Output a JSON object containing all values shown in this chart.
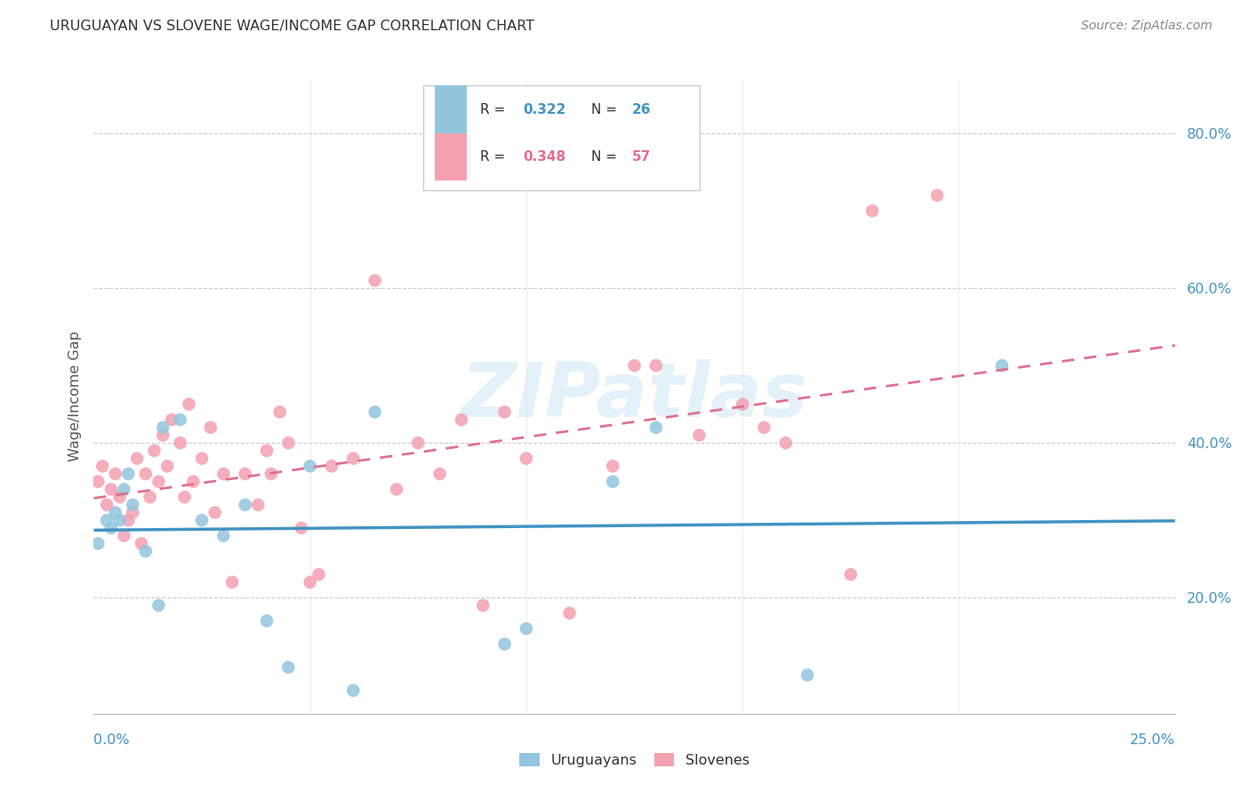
{
  "title": "URUGUAYAN VS SLOVENE WAGE/INCOME GAP CORRELATION CHART",
  "source": "Source: ZipAtlas.com",
  "ylabel": "Wage/Income Gap",
  "color_uruguayan": "#92c5de",
  "color_slovene": "#f4a0b0",
  "line_color_uruguayan": "#4393c3",
  "line_color_slovene": "#e07090",
  "watermark": "ZIPatlas",
  "xlim": [
    0.0,
    0.25
  ],
  "ylim": [
    0.05,
    0.87
  ],
  "R_uruguayan": "0.322",
  "N_uruguayan": "26",
  "R_slovene": "0.348",
  "N_slovene": "57",
  "label_uruguayan": "Uruguayans",
  "label_slovene": "Slovenes",
  "ytick_vals": [
    0.2,
    0.4,
    0.6,
    0.8
  ],
  "ytick_labels": [
    "20.0%",
    "40.0%",
    "60.0%",
    "80.0%"
  ],
  "uruguayan_x": [
    0.001,
    0.003,
    0.004,
    0.005,
    0.006,
    0.007,
    0.008,
    0.009,
    0.012,
    0.015,
    0.016,
    0.02,
    0.025,
    0.03,
    0.035,
    0.04,
    0.045,
    0.05,
    0.06,
    0.065,
    0.095,
    0.1,
    0.13,
    0.165,
    0.21,
    0.12
  ],
  "uruguayan_y": [
    0.27,
    0.3,
    0.29,
    0.31,
    0.3,
    0.34,
    0.36,
    0.32,
    0.26,
    0.19,
    0.42,
    0.43,
    0.3,
    0.28,
    0.32,
    0.17,
    0.11,
    0.37,
    0.08,
    0.44,
    0.14,
    0.16,
    0.42,
    0.1,
    0.5,
    0.35
  ],
  "slovene_x": [
    0.001,
    0.002,
    0.003,
    0.004,
    0.005,
    0.006,
    0.007,
    0.008,
    0.009,
    0.01,
    0.011,
    0.012,
    0.013,
    0.014,
    0.015,
    0.016,
    0.017,
    0.018,
    0.02,
    0.021,
    0.022,
    0.023,
    0.025,
    0.027,
    0.028,
    0.03,
    0.032,
    0.035,
    0.038,
    0.04,
    0.041,
    0.043,
    0.045,
    0.048,
    0.05,
    0.052,
    0.055,
    0.06,
    0.065,
    0.07,
    0.075,
    0.08,
    0.085,
    0.09,
    0.095,
    0.1,
    0.11,
    0.12,
    0.13,
    0.14,
    0.15,
    0.16,
    0.175,
    0.18,
    0.195,
    0.125,
    0.155
  ],
  "slovene_y": [
    0.35,
    0.37,
    0.32,
    0.34,
    0.36,
    0.33,
    0.28,
    0.3,
    0.31,
    0.38,
    0.27,
    0.36,
    0.33,
    0.39,
    0.35,
    0.41,
    0.37,
    0.43,
    0.4,
    0.33,
    0.45,
    0.35,
    0.38,
    0.42,
    0.31,
    0.36,
    0.22,
    0.36,
    0.32,
    0.39,
    0.36,
    0.44,
    0.4,
    0.29,
    0.22,
    0.23,
    0.37,
    0.38,
    0.61,
    0.34,
    0.4,
    0.36,
    0.43,
    0.19,
    0.44,
    0.38,
    0.18,
    0.37,
    0.5,
    0.41,
    0.45,
    0.4,
    0.23,
    0.7,
    0.72,
    0.5,
    0.42
  ]
}
